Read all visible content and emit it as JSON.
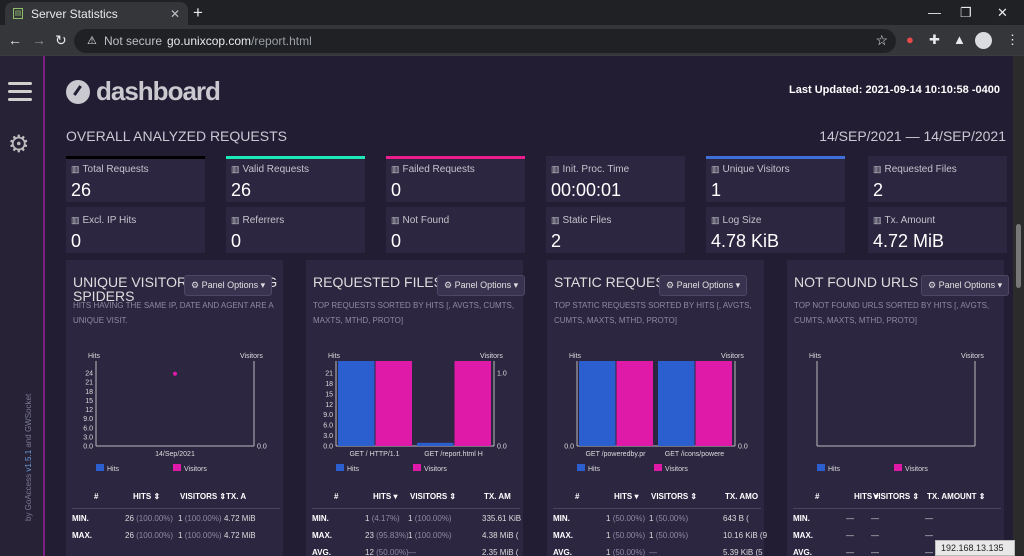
{
  "browser": {
    "tab_title": "Server Statistics",
    "not_secure": "Not secure",
    "url_host": "go.unixcop.com",
    "url_path": "/report.html"
  },
  "header": {
    "brand": "dashboard",
    "last_updated": "Last Updated: 2021-09-14 10:10:58 -0400",
    "section_title": "OVERALL ANALYZED REQUESTS",
    "date_range": "14/SEP/2021 — 14/SEP/2021"
  },
  "sidebar": {
    "credit_prefix": "by GoAccess ",
    "version": "v1.5.1",
    "credit_suffix": " and GWSocket"
  },
  "cards": [
    {
      "label": "Total Requests",
      "value": "26",
      "accent": "#000000"
    },
    {
      "label": "Valid Requests",
      "value": "26",
      "accent": "#1de9b6"
    },
    {
      "label": "Failed Requests",
      "value": "0",
      "accent": "#e91e8c"
    },
    {
      "label": "Init. Proc. Time",
      "value": "00:00:01",
      "accent": ""
    },
    {
      "label": "Unique Visitors",
      "value": "1",
      "accent": "#3f6fd8"
    },
    {
      "label": "Requested Files",
      "value": "2",
      "accent": ""
    },
    {
      "label": "Excl. IP Hits",
      "value": "0",
      "accent": ""
    },
    {
      "label": "Referrers",
      "value": "0",
      "accent": ""
    },
    {
      "label": "Not Found",
      "value": "0",
      "accent": ""
    },
    {
      "label": "Static Files",
      "value": "2",
      "accent": ""
    },
    {
      "label": "Log Size",
      "value": "4.78 KiB",
      "accent": ""
    },
    {
      "label": "Tx. Amount",
      "value": "4.72 MiB",
      "accent": ""
    }
  ],
  "panel_options": "Panel Options",
  "legend": {
    "hits": "Hits",
    "visitors": "Visitors"
  },
  "panels": [
    {
      "title": "UNIQUE VISITORS INCLUDING SPIDERS",
      "subtitle": "HITS HAVING THE SAME IP, DATE AND AGENT ARE A UNIQUE VISIT.",
      "columns": [
        "#",
        "HITS ⇕",
        "VISITORS ⇕",
        "TX. A"
      ],
      "rows": [
        {
          "label": "MIN.",
          "hits": "26",
          "hits_pct": "(100.00%)",
          "visitors": "1",
          "visitors_pct": "(100.00%)",
          "tx": "4.72 MiB"
        },
        {
          "label": "MAX.",
          "hits": "26",
          "hits_pct": "(100.00%)",
          "visitors": "1",
          "visitors_pct": "(100.00%)",
          "tx": "4.72 MiB"
        }
      ]
    },
    {
      "title": "REQUESTED FILES",
      "subtitle": "TOP REQUESTS SORTED BY HITS [, AVGTS, CUMTS, MAXTS, MTHD, PROTO]",
      "columns": [
        "#",
        "HITS ▾",
        "VISITORS ⇕",
        "TX. AM"
      ],
      "rows": [
        {
          "label": "MIN.",
          "hits": "1",
          "hits_pct": "(4.17%)",
          "visitors": "1",
          "visitors_pct": "(100.00%)",
          "tx": "335.61 KiB"
        },
        {
          "label": "MAX.",
          "hits": "23",
          "hits_pct": "(95.83%)",
          "visitors": "1",
          "visitors_pct": "(100.00%)",
          "tx": "4.38 MiB ("
        },
        {
          "label": "AVG.",
          "hits": "12",
          "hits_pct": "(50.00%)",
          "visitors": "",
          "visitors_pct": "—",
          "tx": "2.35 MiB ("
        }
      ]
    },
    {
      "title": "STATIC REQUESTS",
      "subtitle": "TOP STATIC REQUESTS SORTED BY HITS [, AVGTS, CUMTS, MAXTS, MTHD, PROTO]",
      "columns": [
        "#",
        "HITS ▾",
        "VISITORS ⇕",
        "TX. AMO"
      ],
      "rows": [
        {
          "label": "MIN.",
          "hits": "1",
          "hits_pct": "(50.00%)",
          "visitors": "1",
          "visitors_pct": "(50.00%)",
          "tx": "643 B ("
        },
        {
          "label": "MAX.",
          "hits": "1",
          "hits_pct": "(50.00%)",
          "visitors": "1",
          "visitors_pct": "(50.00%)",
          "tx": "10.16 KiB (9"
        },
        {
          "label": "AVG.",
          "hits": "1",
          "hits_pct": "(50.00%)",
          "visitors": "",
          "visitors_pct": "—",
          "tx": "5.39 KiB (5"
        }
      ]
    },
    {
      "title": "NOT FOUND URLS",
      "subtitle": "TOP NOT FOUND URLS SORTED BY HITS [, AVGTS, CUMTS, MAXTS, MTHD, PROTO]",
      "columns": [
        "#",
        "HITS ▾",
        "VISITORS ⇕",
        "TX. AMOUNT ⇕"
      ],
      "rows": [
        {
          "label": "MIN.",
          "hits": "—",
          "hits_pct": "",
          "visitors": "—",
          "visitors_pct": "",
          "tx": "—"
        },
        {
          "label": "MAX.",
          "hits": "—",
          "hits_pct": "",
          "visitors": "—",
          "visitors_pct": "",
          "tx": "—"
        },
        {
          "label": "AVG.",
          "hits": "—",
          "hits_pct": "",
          "visitors": "—",
          "visitors_pct": "",
          "tx": "—"
        }
      ]
    }
  ],
  "status_url": "192.168.13.135",
  "colors": {
    "hits": "#2b5fd0",
    "visitors": "#e01aa8"
  },
  "chart_data": [
    {
      "type": "scatter",
      "categories": [
        "14/Sep/2021"
      ],
      "series": [
        {
          "name": "Hits",
          "values": [
            26
          ]
        },
        {
          "name": "Visitors",
          "values": [
            1
          ]
        }
      ],
      "y_ticks": [
        "0.0",
        "3.0",
        "6.0",
        "9.0",
        "12",
        "15",
        "18",
        "21",
        "24"
      ],
      "ylim": [
        0,
        26
      ],
      "y2_ticks": [
        "0.0"
      ],
      "xlabel": "",
      "ylabel": "Hits",
      "y2label": "Visitors"
    },
    {
      "type": "bar",
      "categories": [
        "GET / HTTP/1.1",
        "GET /report.html H"
      ],
      "series": [
        {
          "name": "Hits",
          "values": [
            23,
            1
          ]
        },
        {
          "name": "Visitors",
          "values": [
            1,
            1
          ]
        }
      ],
      "y_ticks": [
        "0.0",
        "3.0",
        "6.0",
        "9.0",
        "12",
        "15",
        "18",
        "21"
      ],
      "ylim": [
        0,
        23
      ],
      "y2_ticks": [
        "0.0",
        "1.0"
      ],
      "y2lim": [
        0,
        1
      ],
      "ylabel": "Hits",
      "y2label": "Visitors"
    },
    {
      "type": "bar",
      "categories": [
        "GET /poweredby.pr",
        "GET /icons/powere"
      ],
      "series": [
        {
          "name": "Hits",
          "values": [
            1,
            1
          ]
        },
        {
          "name": "Visitors",
          "values": [
            1,
            1
          ]
        }
      ],
      "y_ticks": [
        "0.0"
      ],
      "ylim": [
        0,
        1
      ],
      "y2_ticks": [
        "0.0"
      ],
      "y2lim": [
        0,
        1
      ],
      "ylabel": "Hits",
      "y2label": "Visitors"
    },
    {
      "type": "bar",
      "categories": [],
      "series": [
        {
          "name": "Hits",
          "values": []
        },
        {
          "name": "Visitors",
          "values": []
        }
      ],
      "y_ticks": [],
      "ylabel": "Hits",
      "y2label": "Visitors"
    }
  ]
}
